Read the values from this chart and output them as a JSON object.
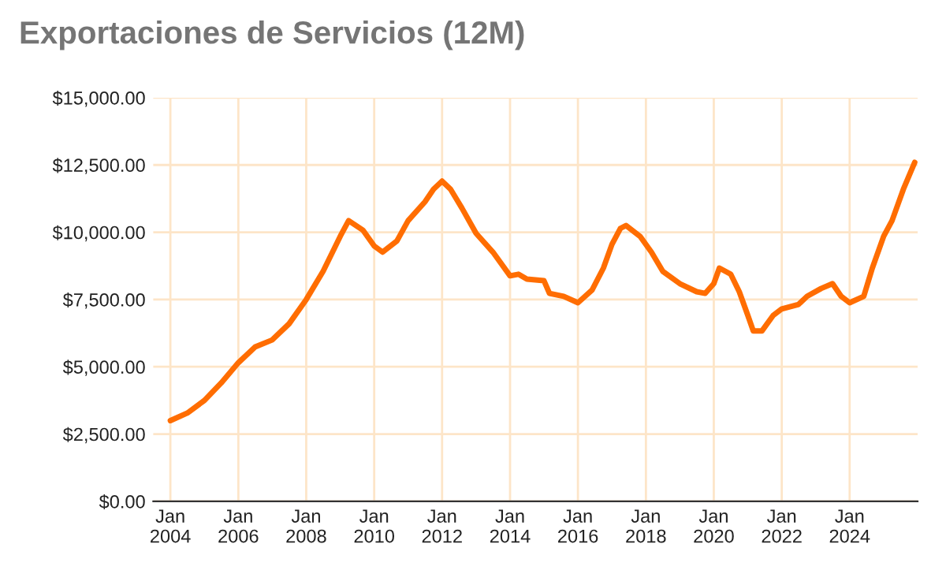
{
  "chart_data": {
    "type": "line",
    "title": "Exportaciones de Servicios (12M)",
    "x": [
      "2004-01",
      "2004-07",
      "2005-01",
      "2005-07",
      "2006-01",
      "2006-07",
      "2007-01",
      "2007-07",
      "2008-01",
      "2008-07",
      "2009-01",
      "2009-04",
      "2009-09",
      "2010-01",
      "2010-04",
      "2010-09",
      "2011-01",
      "2011-07",
      "2011-10",
      "2012-01",
      "2012-04",
      "2012-08",
      "2013-01",
      "2013-07",
      "2014-01",
      "2014-04",
      "2014-07",
      "2015-01",
      "2015-03",
      "2015-08",
      "2016-01",
      "2016-06",
      "2016-10",
      "2017-01",
      "2017-04",
      "2017-06",
      "2017-11",
      "2018-03",
      "2018-07",
      "2019-01",
      "2019-07",
      "2019-10",
      "2020-01",
      "2020-03",
      "2020-07",
      "2020-10",
      "2021-01",
      "2021-03",
      "2021-06",
      "2021-10",
      "2022-01",
      "2022-07",
      "2022-10",
      "2023-03",
      "2023-07",
      "2023-10",
      "2024-01",
      "2024-06",
      "2024-09",
      "2025-01",
      "2025-04",
      "2025-08",
      "2025-12"
    ],
    "series": [
      {
        "color": "#ff6d01",
        "values": [
          3000,
          3280,
          3750,
          4400,
          5150,
          5740,
          6000,
          6600,
          7500,
          8550,
          9850,
          10430,
          10080,
          9490,
          9260,
          9670,
          10430,
          11130,
          11600,
          11900,
          11600,
          10900,
          9960,
          9260,
          8380,
          8440,
          8260,
          8200,
          7730,
          7620,
          7380,
          7850,
          8670,
          9550,
          10140,
          10250,
          9840,
          9260,
          8550,
          8090,
          7790,
          7730,
          8090,
          8670,
          8440,
          7790,
          6910,
          6330,
          6330,
          6910,
          7150,
          7320,
          7620,
          7910,
          8090,
          7620,
          7380,
          7620,
          8670,
          9850,
          10430,
          11600,
          12600
        ]
      }
    ],
    "xlim": [
      "2003-07",
      "2026-01"
    ],
    "xticks": [
      {
        "value": "2004-01",
        "label": "Jan\n2004"
      },
      {
        "value": "2006-01",
        "label": "Jan\n2006"
      },
      {
        "value": "2008-01",
        "label": "Jan\n2008"
      },
      {
        "value": "2010-01",
        "label": "Jan\n2010"
      },
      {
        "value": "2012-01",
        "label": "Jan\n2012"
      },
      {
        "value": "2014-01",
        "label": "Jan\n2014"
      },
      {
        "value": "2016-01",
        "label": "Jan\n2016"
      },
      {
        "value": "2018-01",
        "label": "Jan\n2018"
      },
      {
        "value": "2020-01",
        "label": "Jan\n2020"
      },
      {
        "value": "2022-01",
        "label": "Jan\n2022"
      },
      {
        "value": "2024-01",
        "label": "Jan\n2024"
      }
    ],
    "ylim": [
      0,
      15000
    ],
    "yticks": [
      {
        "value": 0,
        "label": "$0.00"
      },
      {
        "value": 2500,
        "label": "$2,500.00"
      },
      {
        "value": 5000,
        "label": "$5,000.00"
      },
      {
        "value": 7500,
        "label": "$7,500.00"
      },
      {
        "value": 10000,
        "label": "$10,000.00"
      },
      {
        "value": 12500,
        "label": "$12,500.00"
      },
      {
        "value": 15000,
        "label": "$15,000.00"
      }
    ],
    "grid": true
  }
}
